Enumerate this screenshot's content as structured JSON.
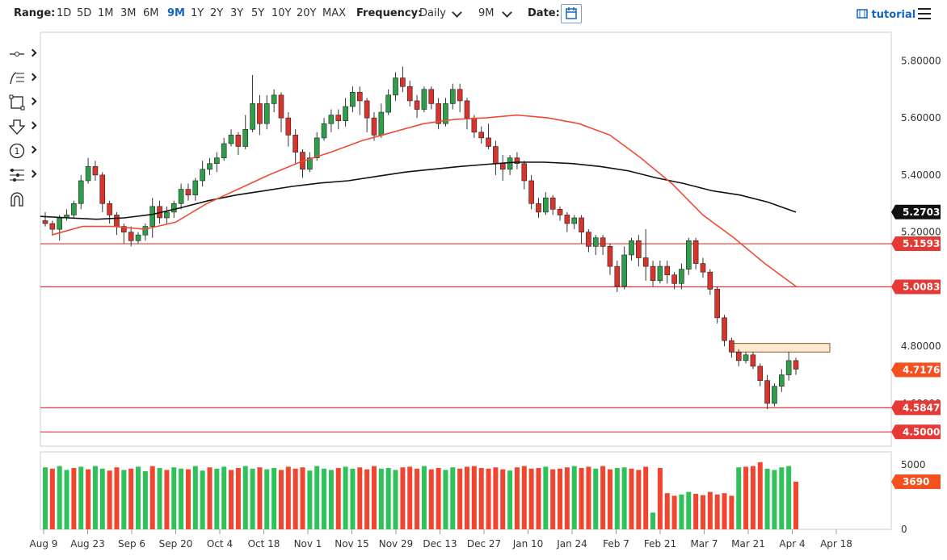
{
  "toolbar": {
    "range_label": "Range:",
    "ranges": [
      "1D",
      "5D",
      "1M",
      "3M",
      "6M",
      "9M",
      "1Y",
      "2Y",
      "3Y",
      "5Y",
      "10Y",
      "20Y",
      "MAX"
    ],
    "active_range": "9M",
    "frequency_label": "Frequency:",
    "frequency_value": "Daily",
    "period_value": "9M",
    "date_label": "Date:",
    "tutorial_label": "tutorial"
  },
  "chart_data": {
    "type": "candlestick",
    "y_ticks": [
      "5.80000",
      "5.60000",
      "5.40000",
      "5.20000",
      "5.00000",
      "4.80000",
      "4.60000"
    ],
    "x_labels": [
      "Aug 9",
      "Aug 23",
      "Sep 6",
      "Sep 20",
      "Oct 4",
      "Oct 18",
      "Nov 1",
      "Nov 15",
      "Nov 29",
      "Dec 13",
      "Dec 27",
      "Jan 10",
      "Jan 24",
      "Feb 7",
      "Feb 21",
      "Mar 7",
      "Mar 21",
      "Apr 4",
      "Apr 18"
    ],
    "ylim": [
      4.45,
      5.9
    ],
    "price_badges": [
      {
        "label": "5.27033",
        "value": 5.27033,
        "color": "#111111"
      },
      {
        "label": "5.15931",
        "value": 5.15931,
        "color": "#e53935"
      },
      {
        "label": "5.00832",
        "value": 5.00832,
        "color": "#e53935"
      },
      {
        "label": "4.71763",
        "value": 4.71763,
        "color": "#f4511e"
      },
      {
        "label": "4.58470",
        "value": 4.5847,
        "color": "#e53935"
      },
      {
        "label": "4.50000",
        "value": 4.5,
        "color": "#e53935"
      }
    ],
    "horizontal_levels": [
      5.15931,
      5.00832,
      4.5847,
      4.5
    ],
    "resistance_zone": {
      "low": 4.78,
      "high": 4.81
    },
    "ma_slow": [
      5.255,
      5.25,
      5.245,
      5.25,
      5.262,
      5.285,
      5.31,
      5.33,
      5.345,
      5.36,
      5.372,
      5.38,
      5.395,
      5.41,
      5.42,
      5.43,
      5.438,
      5.445,
      5.445,
      5.44,
      5.43,
      5.415,
      5.39,
      5.37,
      5.345,
      5.33,
      5.305,
      5.27
    ],
    "ma_fast": [
      5.19,
      5.22,
      5.22,
      5.21,
      5.235,
      5.3,
      5.35,
      5.4,
      5.445,
      5.48,
      5.52,
      5.55,
      5.58,
      5.595,
      5.6,
      5.61,
      5.6,
      5.58,
      5.54,
      5.46,
      5.37,
      5.26,
      5.18,
      5.09,
      5.01
    ],
    "candles": [
      [
        5.24,
        5.23,
        5.27,
        5.22
      ],
      [
        5.23,
        5.21,
        5.24,
        5.19
      ],
      [
        5.21,
        5.25,
        5.26,
        5.17
      ],
      [
        5.25,
        5.26,
        5.28,
        5.24
      ],
      [
        5.26,
        5.3,
        5.31,
        5.25
      ],
      [
        5.3,
        5.38,
        5.4,
        5.28
      ],
      [
        5.38,
        5.43,
        5.46,
        5.37
      ],
      [
        5.43,
        5.4,
        5.45,
        5.38
      ],
      [
        5.4,
        5.3,
        5.41,
        5.27
      ],
      [
        5.3,
        5.26,
        5.31,
        5.23
      ],
      [
        5.26,
        5.22,
        5.27,
        5.19
      ],
      [
        5.22,
        5.2,
        5.23,
        5.16
      ],
      [
        5.2,
        5.17,
        5.22,
        5.15
      ],
      [
        5.17,
        5.19,
        5.2,
        5.16
      ],
      [
        5.19,
        5.22,
        5.23,
        5.17
      ],
      [
        5.22,
        5.29,
        5.32,
        5.18
      ],
      [
        5.29,
        5.25,
        5.31,
        5.23
      ],
      [
        5.25,
        5.27,
        5.29,
        5.23
      ],
      [
        5.27,
        5.3,
        5.31,
        5.25
      ],
      [
        5.3,
        5.35,
        5.37,
        5.28
      ],
      [
        5.35,
        5.33,
        5.37,
        5.31
      ],
      [
        5.33,
        5.38,
        5.39,
        5.31
      ],
      [
        5.38,
        5.42,
        5.45,
        5.36
      ],
      [
        5.42,
        5.44,
        5.46,
        5.4
      ],
      [
        5.44,
        5.46,
        5.48,
        5.41
      ],
      [
        5.46,
        5.51,
        5.53,
        5.45
      ],
      [
        5.51,
        5.54,
        5.56,
        5.5
      ],
      [
        5.54,
        5.5,
        5.55,
        5.47
      ],
      [
        5.5,
        5.56,
        5.61,
        5.49
      ],
      [
        5.56,
        5.65,
        5.75,
        5.55
      ],
      [
        5.65,
        5.58,
        5.68,
        5.54
      ],
      [
        5.58,
        5.65,
        5.68,
        5.56
      ],
      [
        5.65,
        5.68,
        5.7,
        5.62
      ],
      [
        5.68,
        5.6,
        5.69,
        5.55
      ],
      [
        5.6,
        5.54,
        5.62,
        5.5
      ],
      [
        5.54,
        5.48,
        5.56,
        5.44
      ],
      [
        5.48,
        5.42,
        5.49,
        5.39
      ],
      [
        5.42,
        5.46,
        5.48,
        5.41
      ],
      [
        5.46,
        5.53,
        5.55,
        5.45
      ],
      [
        5.53,
        5.58,
        5.6,
        5.52
      ],
      [
        5.58,
        5.61,
        5.63,
        5.55
      ],
      [
        5.61,
        5.59,
        5.63,
        5.56
      ],
      [
        5.59,
        5.64,
        5.67,
        5.57
      ],
      [
        5.64,
        5.69,
        5.71,
        5.62
      ],
      [
        5.69,
        5.66,
        5.71,
        5.61
      ],
      [
        5.66,
        5.6,
        5.67,
        5.55
      ],
      [
        5.6,
        5.54,
        5.62,
        5.52
      ],
      [
        5.54,
        5.62,
        5.65,
        5.53
      ],
      [
        5.62,
        5.68,
        5.7,
        5.61
      ],
      [
        5.68,
        5.74,
        5.76,
        5.66
      ],
      [
        5.74,
        5.71,
        5.78,
        5.69
      ],
      [
        5.71,
        5.66,
        5.73,
        5.64
      ],
      [
        5.66,
        5.63,
        5.68,
        5.6
      ],
      [
        5.63,
        5.7,
        5.71,
        5.62
      ],
      [
        5.7,
        5.65,
        5.71,
        5.63
      ],
      [
        5.65,
        5.58,
        5.67,
        5.56
      ],
      [
        5.58,
        5.65,
        5.67,
        5.57
      ],
      [
        5.65,
        5.7,
        5.72,
        5.63
      ],
      [
        5.7,
        5.66,
        5.72,
        5.62
      ],
      [
        5.66,
        5.6,
        5.67,
        5.56
      ],
      [
        5.6,
        5.55,
        5.61,
        5.53
      ],
      [
        5.55,
        5.53,
        5.57,
        5.51
      ],
      [
        5.53,
        5.5,
        5.58,
        5.49
      ],
      [
        5.5,
        5.44,
        5.52,
        5.4
      ],
      [
        5.44,
        5.42,
        5.47,
        5.38
      ],
      [
        5.42,
        5.46,
        5.47,
        5.4
      ],
      [
        5.46,
        5.44,
        5.48,
        5.42
      ],
      [
        5.44,
        5.38,
        5.45,
        5.35
      ],
      [
        5.38,
        5.3,
        5.4,
        5.28
      ],
      [
        5.3,
        5.27,
        5.32,
        5.25
      ],
      [
        5.27,
        5.32,
        5.34,
        5.26
      ],
      [
        5.32,
        5.28,
        5.33,
        5.26
      ],
      [
        5.28,
        5.26,
        5.29,
        5.24
      ],
      [
        5.26,
        5.23,
        5.27,
        5.2
      ],
      [
        5.23,
        5.25,
        5.26,
        5.21
      ],
      [
        5.25,
        5.2,
        5.26,
        5.16
      ],
      [
        5.2,
        5.15,
        5.21,
        5.13
      ],
      [
        5.15,
        5.18,
        5.19,
        5.12
      ],
      [
        5.18,
        5.15,
        5.19,
        5.12
      ],
      [
        5.15,
        5.08,
        5.16,
        5.05
      ],
      [
        5.08,
        5.01,
        5.1,
        4.99
      ],
      [
        5.01,
        5.12,
        5.15,
        5.0
      ],
      [
        5.12,
        5.17,
        5.18,
        5.1
      ],
      [
        5.17,
        5.11,
        5.19,
        5.08
      ],
      [
        5.11,
        5.08,
        5.21,
        5.03
      ],
      [
        5.08,
        5.03,
        5.1,
        5.01
      ],
      [
        5.03,
        5.08,
        5.1,
        5.02
      ],
      [
        5.08,
        5.05,
        5.1,
        5.02
      ],
      [
        5.05,
        5.02,
        5.06,
        5.0
      ],
      [
        5.02,
        5.07,
        5.09,
        5.0
      ],
      [
        5.07,
        5.17,
        5.18,
        5.05
      ],
      [
        5.17,
        5.09,
        5.18,
        5.07
      ],
      [
        5.09,
        5.06,
        5.11,
        5.04
      ],
      [
        5.06,
        5.0,
        5.07,
        4.98
      ],
      [
        5.0,
        4.9,
        5.01,
        4.88
      ],
      [
        4.9,
        4.82,
        4.91,
        4.8
      ],
      [
        4.82,
        4.78,
        4.83,
        4.76
      ],
      [
        4.78,
        4.75,
        4.79,
        4.73
      ],
      [
        4.75,
        4.77,
        4.78,
        4.74
      ],
      [
        4.77,
        4.73,
        4.78,
        4.72
      ],
      [
        4.73,
        4.68,
        4.74,
        4.66
      ],
      [
        4.68,
        4.6,
        4.7,
        4.58
      ],
      [
        4.6,
        4.66,
        4.67,
        4.59
      ],
      [
        4.66,
        4.7,
        4.72,
        4.64
      ],
      [
        4.7,
        4.75,
        4.78,
        4.68
      ],
      [
        4.75,
        4.72,
        4.76,
        4.7
      ]
    ],
    "volume_ticks": [
      "5000",
      "0"
    ],
    "volume_badge": "3690",
    "volume_max": 6000,
    "volumes": [
      4800,
      4700,
      4900,
      4600,
      4750,
      4850,
      4650,
      4900,
      4700,
      4550,
      4800,
      4600,
      4700,
      4850,
      4500,
      4900,
      4750,
      4600,
      4800,
      4700,
      4650,
      4900,
      4550,
      4800,
      4700,
      4850,
      4600,
      4750,
      4900,
      4700,
      4800,
      4650,
      4750,
      4600,
      4850,
      4700,
      4800,
      4550,
      4900,
      4700,
      4600,
      4750,
      4850,
      4700,
      4800,
      4650,
      4900,
      4700,
      4750,
      4600,
      4800,
      4850,
      4700,
      4900,
      4650,
      4750,
      4600,
      4800,
      4700,
      4850,
      4900,
      4750,
      4700,
      4800,
      4650,
      4550,
      4800,
      4900,
      4700,
      4750,
      4850,
      4650,
      4700,
      4800,
      4900,
      4750,
      4850,
      4700,
      4900,
      4650,
      4750,
      4800,
      4700,
      4600,
      4850,
      1300,
      4750,
      2800,
      2600,
      2700,
      2900,
      2750,
      2650,
      2900,
      2700,
      2800,
      2600,
      4800,
      4850,
      4900,
      5200,
      4700,
      4600,
      4800,
      4900,
      3690
    ],
    "volume_dir": [
      1,
      0,
      1,
      1,
      0,
      1,
      0,
      1,
      1,
      0,
      0,
      1,
      0,
      1,
      1,
      0,
      1,
      0,
      1,
      1,
      0,
      1,
      1,
      0,
      1,
      1,
      0,
      0,
      1,
      1,
      0,
      1,
      1,
      0,
      0,
      0,
      0,
      1,
      1,
      1,
      1,
      0,
      1,
      1,
      0,
      0,
      0,
      1,
      1,
      1,
      0,
      0,
      0,
      1,
      0,
      0,
      1,
      1,
      0,
      0,
      0,
      0,
      0,
      0,
      0,
      1,
      0,
      0,
      0,
      0,
      1,
      0,
      0,
      0,
      1,
      0,
      0,
      1,
      0,
      0,
      1,
      1,
      0,
      0,
      0,
      1,
      0,
      0,
      0,
      1,
      1,
      0,
      0,
      0,
      0,
      0,
      0,
      1,
      0,
      0,
      0,
      1,
      1,
      1,
      1,
      0
    ]
  }
}
